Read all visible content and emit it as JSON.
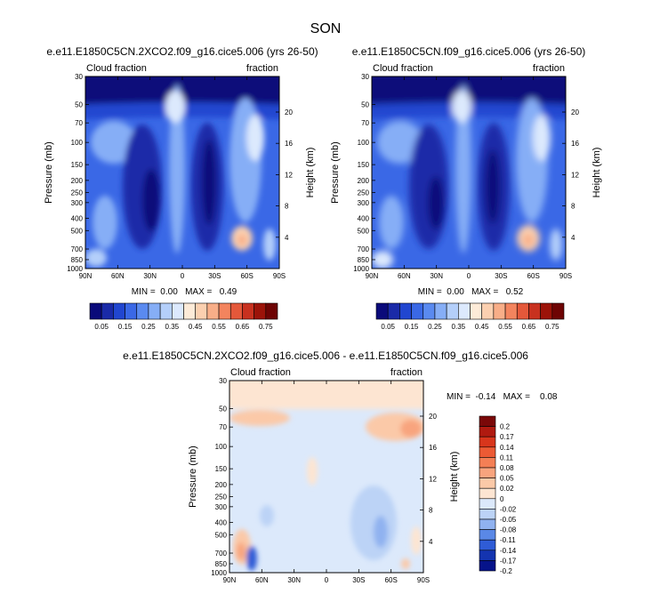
{
  "title": "SON",
  "panel_titles": [
    "e.e11.E1850C5CN.2XCO2.f09_g16.cice5.006 (yrs 26-50)",
    "e.e11.E1850C5CN.f09_g16.cice5.006 (yrs 26-50)",
    "e.e11.E1850C5CN.2XCO2.f09_g16.cice5.006 - e.e11.E1850C5CN.f09_g16.cice5.006"
  ],
  "chart_data": [
    {
      "type": "heatmap",
      "title": "e.e11.E1850C5CN.2XCO2.f09_g16.cice5.006 (yrs 26-50)",
      "left_label": "Cloud fraction",
      "right_label": "fraction",
      "ylabel": "Pressure (mb)",
      "y2label": "Height (km)",
      "x_ticks": [
        "90N",
        "60N",
        "30N",
        "0",
        "30S",
        "60S",
        "90S"
      ],
      "y_ticks": [
        "30",
        "50",
        "70",
        "100",
        "150",
        "200",
        "250",
        "300",
        "400",
        "500",
        "700",
        "850",
        "1000"
      ],
      "y2_ticks": [
        "20",
        "16",
        "12",
        "8",
        "4"
      ],
      "stats_text": "MIN =  0.00   MAX =   0.49",
      "min": 0.0,
      "max": 0.49,
      "colorbar_labels": [
        "0.05",
        "0.15",
        "0.25",
        "0.35",
        "0.45",
        "0.55",
        "0.65",
        "0.75"
      ]
    },
    {
      "type": "heatmap",
      "title": "e.e11.E1850C5CN.f09_g16.cice5.006 (yrs 26-50)",
      "left_label": "Cloud fraction",
      "right_label": "fraction",
      "ylabel": "Pressure (mb)",
      "y2label": "Height (km)",
      "x_ticks": [
        "90N",
        "60N",
        "30N",
        "0",
        "30S",
        "60S",
        "90S"
      ],
      "y_ticks": [
        "30",
        "50",
        "70",
        "100",
        "150",
        "200",
        "250",
        "300",
        "400",
        "500",
        "700",
        "850",
        "1000"
      ],
      "y2_ticks": [
        "20",
        "16",
        "12",
        "8",
        "4"
      ],
      "stats_text": "MIN =  0.00   MAX =   0.52",
      "min": 0.0,
      "max": 0.52,
      "colorbar_labels": [
        "0.05",
        "0.15",
        "0.25",
        "0.35",
        "0.45",
        "0.55",
        "0.65",
        "0.75"
      ]
    },
    {
      "type": "heatmap",
      "title": "e.e11.E1850C5CN.2XCO2.f09_g16.cice5.006 - e.e11.E1850C5CN.f09_g16.cice5.006",
      "left_label": "Cloud fraction",
      "right_label": "fraction",
      "ylabel": "Pressure (mb)",
      "y2label": "Height (km)",
      "x_ticks": [
        "90N",
        "60N",
        "30N",
        "0",
        "30S",
        "60S",
        "90S"
      ],
      "y_ticks": [
        "30",
        "50",
        "70",
        "100",
        "150",
        "200",
        "250",
        "300",
        "400",
        "500",
        "700",
        "850",
        "1000"
      ],
      "y2_ticks": [
        "20",
        "16",
        "12",
        "8",
        "4"
      ],
      "stats_text": "MIN =  -0.14   MAX =    0.08",
      "min": -0.14,
      "max": 0.08,
      "colorbar_labels": [
        "0.2",
        "0.17",
        "0.14",
        "0.11",
        "0.08",
        "0.05",
        "0.02",
        "0",
        "-0.02",
        "-0.05",
        "-0.08",
        "-0.11",
        "-0.14",
        "-0.17",
        "-0.2"
      ]
    }
  ],
  "colors": {
    "seq": [
      "#0a0a7a",
      "#1a2aa8",
      "#2146d0",
      "#3a68e6",
      "#5a8af0",
      "#86aef6",
      "#b4cffa",
      "#dce9fd",
      "#fdebd8",
      "#fbd0b0",
      "#f8ae88",
      "#f3845e",
      "#e4583a",
      "#c8311f",
      "#9c1309",
      "#6e0404"
    ],
    "div": [
      "#7a0808",
      "#b01a10",
      "#d8361c",
      "#ec5a34",
      "#f47f55",
      "#f8a47e",
      "#fbc9a8",
      "#fde5d2",
      "#dce9fb",
      "#bcd3f6",
      "#90b2f0",
      "#5a88e6",
      "#2f5cd6",
      "#1434b0",
      "#06138a"
    ]
  }
}
